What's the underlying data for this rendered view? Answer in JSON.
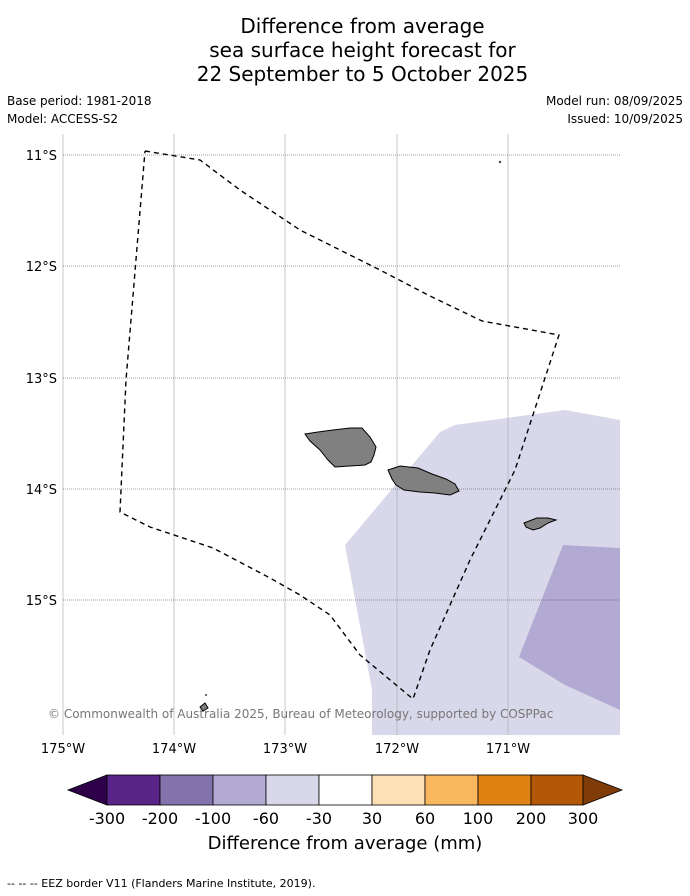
{
  "title": {
    "line1": "Difference from average",
    "line2": "sea surface height forecast for",
    "line3": "22 September to 5 October 2025"
  },
  "meta": {
    "base_period": "Base period: 1981-2018",
    "model": "Model: ACCESS-S2",
    "model_run": "Model run: 08/09/2025",
    "issued": "Issued: 10/09/2025"
  },
  "map": {
    "lat_labels": [
      "11°S",
      "12°S",
      "13°S",
      "14°S",
      "15°S"
    ],
    "lon_labels": [
      "175°W",
      "174°W",
      "173°W",
      "172°W",
      "171°W"
    ],
    "credit": "© Commonwealth of Australia 2025, Bureau of Meteorology, supported by COSPPac",
    "colors": {
      "land": "#808080",
      "band_minus30_minus60": "#d8d8ea",
      "band_minus60_minus100": "#b2aad2",
      "eez_line": "#000000"
    }
  },
  "colorbar": {
    "title": "Difference from average (mm)",
    "labels": [
      "-300",
      "-200",
      "-100",
      "-60",
      "-30",
      "30",
      "60",
      "100",
      "200",
      "300"
    ],
    "colors": [
      "#2e004a",
      "#582487",
      "#8273ad",
      "#b2aad2",
      "#d8d8ea",
      "#ffffff",
      "#fee0b6",
      "#fbb75e",
      "#e08213",
      "#b35807",
      "#7f3b08"
    ]
  },
  "footnote": "--  --  -- EEZ border V11 (Flanders Marine Institute, 2019)."
}
